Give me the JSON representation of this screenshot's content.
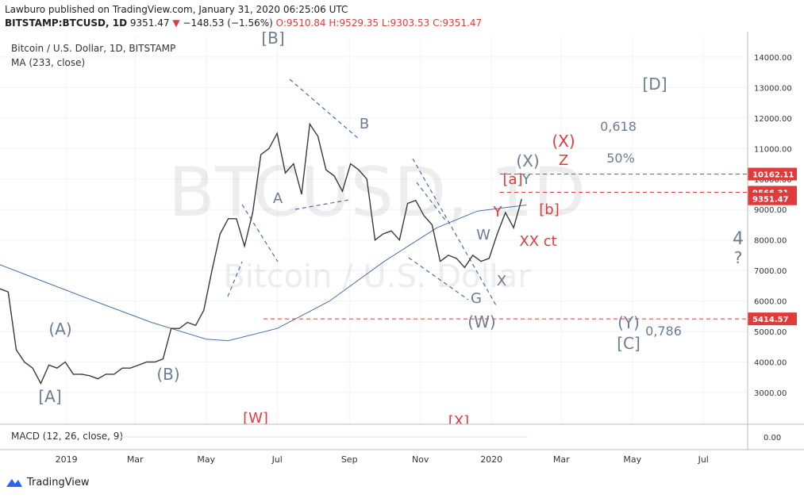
{
  "header": {
    "publisher": "Lawburo published on TradingView.com, January 31, 2020 06:25:06 UTC",
    "symbol": "BITSTAMP:BTCUSD, 1D",
    "last": "9351.47",
    "arrow": "▼",
    "change": "−148.53 (−1.56%)",
    "open": "O:9510.84",
    "high": "H:9529.35",
    "low": "L:9303.53",
    "close": "C:9351.47"
  },
  "footer": {
    "brand": "TradingView"
  },
  "chart_data": {
    "type": "line",
    "title": "Bitcoin / U.S. Dollar, 1D, BITSTAMP",
    "watermark": "BTCUSD, 1D",
    "watermark_sub": "Bitcoin / U.S. Dollar",
    "x": [
      "2018-11-05",
      "2018-11-12",
      "2018-11-19",
      "2018-11-26",
      "2018-12-03",
      "2018-12-10",
      "2018-12-17",
      "2018-12-24",
      "2018-12-31",
      "2019-01-07",
      "2019-01-14",
      "2019-01-21",
      "2019-01-28",
      "2019-02-04",
      "2019-02-11",
      "2019-02-18",
      "2019-02-25",
      "2019-03-04",
      "2019-03-11",
      "2019-03-18",
      "2019-03-25",
      "2019-04-01",
      "2019-04-08",
      "2019-04-15",
      "2019-04-22",
      "2019-04-29",
      "2019-05-06",
      "2019-05-13",
      "2019-05-20",
      "2019-05-27",
      "2019-06-03",
      "2019-06-10",
      "2019-06-17",
      "2019-06-24",
      "2019-07-01",
      "2019-07-08",
      "2019-07-15",
      "2019-07-22",
      "2019-07-29",
      "2019-08-05",
      "2019-08-12",
      "2019-08-19",
      "2019-08-26",
      "2019-09-02",
      "2019-09-09",
      "2019-09-16",
      "2019-09-23",
      "2019-09-30",
      "2019-10-07",
      "2019-10-14",
      "2019-10-21",
      "2019-10-28",
      "2019-11-04",
      "2019-11-11",
      "2019-11-18",
      "2019-11-25",
      "2019-12-02",
      "2019-12-09",
      "2019-12-16",
      "2019-12-23",
      "2019-12-30",
      "2020-01-06",
      "2020-01-13",
      "2020-01-20",
      "2020-01-27"
    ],
    "series": [
      {
        "name": "BTCUSD",
        "color": "#3a3a3a",
        "values": [
          6400,
          6300,
          4400,
          4000,
          3800,
          3300,
          3900,
          3800,
          4000,
          3600,
          3600,
          3550,
          3450,
          3600,
          3600,
          3800,
          3800,
          3900,
          4000,
          4000,
          4100,
          5100,
          5100,
          5300,
          5200,
          5700,
          7000,
          8200,
          8700,
          8700,
          7800,
          8900,
          10800,
          11000,
          11500,
          10200,
          10500,
          9500,
          11800,
          11400,
          10300,
          10100,
          9600,
          10500,
          10300,
          10000,
          8000,
          8200,
          8300,
          8000,
          9200,
          9300,
          8800,
          8500,
          7300,
          7500,
          7400,
          7100,
          7500,
          7300,
          7400,
          8200,
          8900,
          8400,
          9350
        ]
      }
    ],
    "ma": {
      "name": "MA (233, close)",
      "color": "#4a6fa5",
      "x": [
        "2018-11-05",
        "2018-12-15",
        "2019-02-01",
        "2019-03-15",
        "2019-05-01",
        "2019-05-20",
        "2019-07-01",
        "2019-08-15",
        "2019-10-01",
        "2019-11-15",
        "2019-12-20",
        "2020-01-31"
      ],
      "values": [
        7190,
        6600,
        5900,
        5300,
        4750,
        4700,
        5100,
        6000,
        7300,
        8400,
        8950,
        9150
      ]
    },
    "xlim": [
      "2018-11-05",
      "2020-08-08"
    ],
    "xticks": [
      {
        "value": "2019-01-01",
        "label": "2019"
      },
      {
        "value": "2019-03-01",
        "label": "Mar"
      },
      {
        "value": "2019-05-01",
        "label": "May"
      },
      {
        "value": "2019-07-01",
        "label": "Jul"
      },
      {
        "value": "2019-09-01",
        "label": "Sep"
      },
      {
        "value": "2019-11-01",
        "label": "Nov"
      },
      {
        "value": "2020-01-01",
        "label": "2020"
      },
      {
        "value": "2020-03-01",
        "label": "Mar"
      },
      {
        "value": "2020-05-01",
        "label": "May"
      },
      {
        "value": "2020-07-01",
        "label": "Jul"
      }
    ],
    "ylim": [
      1960,
      14700
    ],
    "yticks": [
      {
        "value": 3000,
        "label": "3000.00"
      },
      {
        "value": 4000,
        "label": "4000.00"
      },
      {
        "value": 5000,
        "label": "5000.00"
      },
      {
        "value": 6000,
        "label": "6000.00"
      },
      {
        "value": 7000,
        "label": "7000.00"
      },
      {
        "value": 8000,
        "label": "8000.00"
      },
      {
        "value": 9000,
        "label": "9000.00"
      },
      {
        "value": 10000,
        "label": "10000.00"
      },
      {
        "value": 11000,
        "label": "11000.00"
      },
      {
        "value": 12000,
        "label": "12000.00"
      },
      {
        "value": 13000,
        "label": "13000.00"
      },
      {
        "value": 14000,
        "label": "14000.00"
      }
    ],
    "levels": [
      {
        "value": 10162.11,
        "color": "#e03b3b"
      },
      {
        "value": 9566.31,
        "color": "#e03b3b"
      },
      {
        "value": 5414.57,
        "color": "#e03b3b"
      }
    ],
    "last_price": 9351.47,
    "annotations": [
      {
        "text": "[B]",
        "color": "#6b7c93"
      },
      {
        "text": "B",
        "color": "#6b7c93"
      },
      {
        "text": "A",
        "color": "#6b7c93"
      },
      {
        "text": "(A)",
        "color": "#6b7c93"
      },
      {
        "text": "[A]",
        "color": "#6b7c93"
      },
      {
        "text": "(B)",
        "color": "#6b7c93"
      },
      {
        "text": "W",
        "color": "#6b7c93"
      },
      {
        "text": "G",
        "color": "#6b7c93"
      },
      {
        "text": "X",
        "color": "#6b7c93"
      },
      {
        "text": "(W)",
        "color": "#6b7c93"
      },
      {
        "text": "(X)",
        "color": "#6b7c93"
      },
      {
        "text": "Y",
        "color": "#6b7c93"
      },
      {
        "text": "[a]",
        "color": "#e03b3b"
      },
      {
        "text": "Y",
        "color": "#e03b3b"
      },
      {
        "text": "[b]",
        "color": "#e03b3b"
      },
      {
        "text": "XX ct",
        "color": "#e03b3b"
      },
      {
        "text": "(X)",
        "color": "#e03b3b"
      },
      {
        "text": "Z",
        "color": "#e03b3b"
      },
      {
        "text": "50%",
        "color": "#6b7c93"
      },
      {
        "text": "0,618",
        "color": "#6b7c93"
      },
      {
        "text": "[D]",
        "color": "#6b7c93"
      },
      {
        "text": "4",
        "color": "#6b7c93"
      },
      {
        "text": "?",
        "color": "#6b7c93"
      },
      {
        "text": "(Y)",
        "color": "#6b7c93"
      },
      {
        "text": "[C]",
        "color": "#6b7c93"
      },
      {
        "text": "0,786",
        "color": "#6b7c93"
      },
      {
        "text": "[W]",
        "color": "#e03b3b"
      },
      {
        "text": "[X]",
        "color": "#e03b3b"
      }
    ],
    "macd": {
      "title": "MACD (12, 26, close, 9)",
      "yticks": [
        {
          "value": 0,
          "label": "0.00"
        }
      ]
    }
  }
}
